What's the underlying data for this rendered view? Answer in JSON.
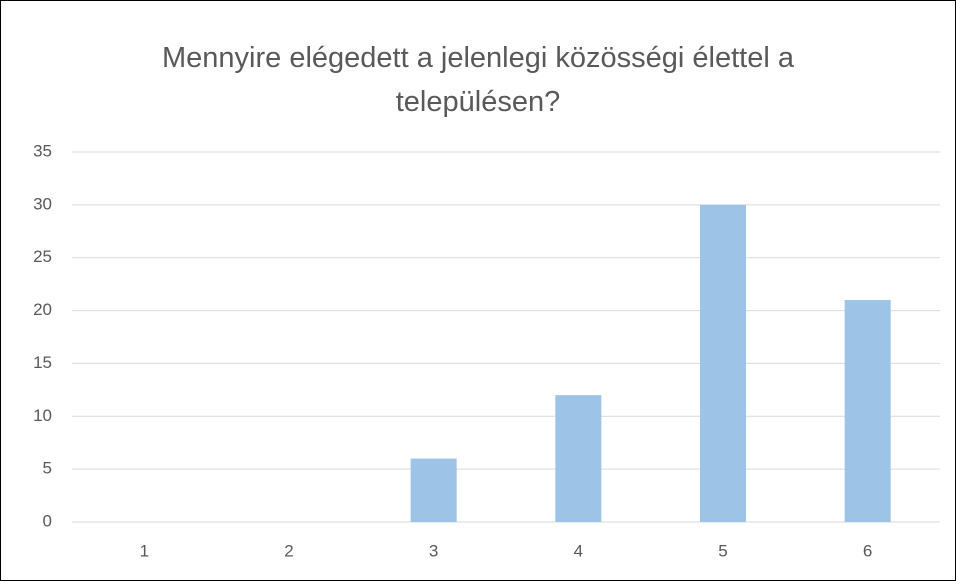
{
  "chart_data": {
    "type": "bar",
    "title": "Mennyire elégedett a jelenlegi közösségi élettel a településen?",
    "categories": [
      "1",
      "2",
      "3",
      "4",
      "5",
      "6"
    ],
    "values": [
      0,
      0,
      6,
      12,
      30,
      21
    ],
    "color": "#9dc3e6",
    "ylim": [
      0,
      35
    ],
    "yticks": [
      0,
      5,
      10,
      15,
      20,
      25,
      30,
      35
    ],
    "grid": true
  }
}
